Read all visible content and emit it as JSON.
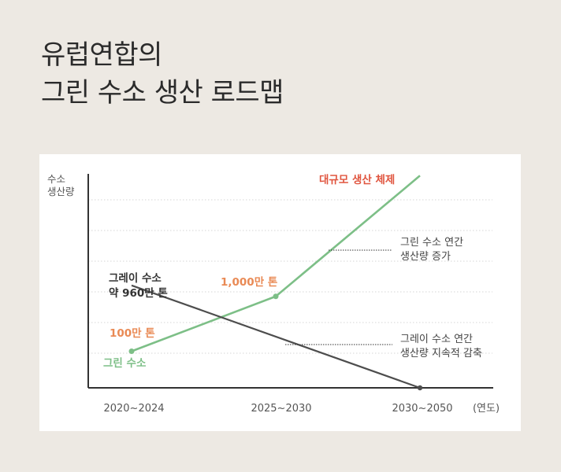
{
  "title": {
    "line1": "유럽연합의",
    "line2": "그린 수소 생산 로드맵"
  },
  "colors": {
    "background": "#ede9e3",
    "card": "#ffffff",
    "green": "#7dbf87",
    "gray_line": "#4d4d4d",
    "orange": "#e98a55",
    "red": "#e0553f",
    "text": "#333333"
  },
  "chart_data": {
    "type": "line",
    "ylabel_line1": "수소",
    "ylabel_line2": "생산량",
    "x_unit": "(연도)",
    "categories": [
      "2020~2024",
      "2025~2030",
      "2030~2050"
    ],
    "grid": true,
    "series": [
      {
        "name": "그린 수소",
        "color": "#7dbf87",
        "points": [
          {
            "x": 0.0,
            "y": 50
          },
          {
            "x": 1.0,
            "y": 125
          },
          {
            "x": 2.0,
            "y": 290
          }
        ]
      },
      {
        "name": "그레이 수소",
        "color": "#4d4d4d",
        "points": [
          {
            "x": 0.0,
            "y": 140
          },
          {
            "x": 2.0,
            "y": 0
          }
        ]
      }
    ],
    "annotations": {
      "green_start_value": "100만 톤",
      "green_start_name": "그린 수소",
      "green_mid_value": "1,000만 톤",
      "green_end": "대규모 생산 체제",
      "gray_start_line1": "그레이 수소",
      "gray_start_line2": "약 960만 톤",
      "green_trend_line1": "그린 수소 연간",
      "green_trend_line2": "생산량 증가",
      "gray_trend_line1": "그레이 수소 연간",
      "gray_trend_line2": "생산량 지속적 감축"
    }
  }
}
